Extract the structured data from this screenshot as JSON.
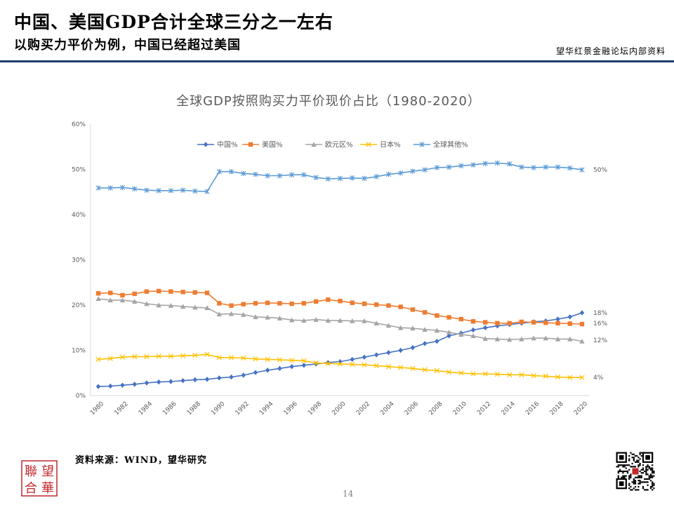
{
  "header": {
    "title": "中国、美国GDP合计全球三分之一左右",
    "subtitle": "以购买力平价为例，中国已经超过美国",
    "org_note": "望华红景金融论坛内部资料"
  },
  "footer": {
    "source": "资料来源：WIND，望华研究",
    "page_number": "14",
    "logo_text": [
      "望",
      "聯",
      "華",
      "合"
    ]
  },
  "colors": {
    "header_rule": "#1f3e6e",
    "logo_red": "#c0282d"
  },
  "chart_data": {
    "type": "line",
    "title": "全球GDP按照购买力平价现价占比（1980-2020）",
    "xlabel": "",
    "ylabel": "",
    "ylim": [
      0,
      60
    ],
    "ytick_labels": [
      "0%",
      "10%",
      "20%",
      "30%",
      "40%",
      "50%",
      "60%"
    ],
    "grid": false,
    "legend_position": "top",
    "x": [
      1980,
      1981,
      1982,
      1983,
      1984,
      1985,
      1986,
      1987,
      1988,
      1989,
      1990,
      1991,
      1992,
      1993,
      1994,
      1995,
      1996,
      1997,
      1998,
      1999,
      2000,
      2001,
      2002,
      2003,
      2004,
      2005,
      2006,
      2007,
      2008,
      2009,
      2010,
      2011,
      2012,
      2013,
      2014,
      2015,
      2016,
      2017,
      2018,
      2019,
      2020
    ],
    "xtick_labels": [
      "1980",
      "1982",
      "1984",
      "1986",
      "1988",
      "1990",
      "1992",
      "1994",
      "1996",
      "1998",
      "2000",
      "2002",
      "2004",
      "2006",
      "2008",
      "2010",
      "2012",
      "2014",
      "2016",
      "2018",
      "2020"
    ],
    "series": [
      {
        "name": "中国%",
        "color": "#4472c4",
        "marker": "diamond",
        "end_label": "18%",
        "values": [
          2.0,
          2.1,
          2.3,
          2.5,
          2.8,
          3.0,
          3.1,
          3.3,
          3.5,
          3.6,
          3.9,
          4.1,
          4.5,
          5.1,
          5.6,
          6.0,
          6.4,
          6.7,
          7.0,
          7.3,
          7.5,
          8.0,
          8.5,
          9.0,
          9.5,
          10.0,
          10.6,
          11.5,
          12.0,
          13.2,
          13.8,
          14.5,
          15.0,
          15.4,
          15.7,
          16.0,
          16.3,
          16.5,
          16.9,
          17.4,
          18.3
        ]
      },
      {
        "name": "美国%",
        "color": "#ed7d31",
        "marker": "square",
        "end_label": "16%",
        "values": [
          22.6,
          22.7,
          22.2,
          22.5,
          23.0,
          23.1,
          23.0,
          22.9,
          22.8,
          22.7,
          20.4,
          19.9,
          20.2,
          20.4,
          20.5,
          20.4,
          20.3,
          20.4,
          20.8,
          21.2,
          20.9,
          20.5,
          20.3,
          20.1,
          19.9,
          19.6,
          19.0,
          18.4,
          17.7,
          17.3,
          16.9,
          16.4,
          16.2,
          16.0,
          16.0,
          16.3,
          16.2,
          16.1,
          16.0,
          15.9,
          15.8
        ]
      },
      {
        "name": "欧元区%",
        "color": "#a5a5a5",
        "marker": "triangle",
        "end_label": "12%",
        "values": [
          21.4,
          21.1,
          21.1,
          20.8,
          20.3,
          20.0,
          19.9,
          19.7,
          19.5,
          19.4,
          18.0,
          18.1,
          17.9,
          17.4,
          17.3,
          17.1,
          16.7,
          16.6,
          16.8,
          16.6,
          16.6,
          16.5,
          16.5,
          16.0,
          15.5,
          15.0,
          14.9,
          14.6,
          14.4,
          14.0,
          13.5,
          13.2,
          12.6,
          12.5,
          12.4,
          12.5,
          12.7,
          12.7,
          12.5,
          12.5,
          12.0
        ]
      },
      {
        "name": "日本%",
        "color": "#ffc000",
        "marker": "x",
        "end_label": "4%",
        "values": [
          8.0,
          8.2,
          8.5,
          8.6,
          8.6,
          8.7,
          8.7,
          8.8,
          8.9,
          9.1,
          8.4,
          8.4,
          8.3,
          8.1,
          8.0,
          7.9,
          7.8,
          7.7,
          7.2,
          7.1,
          7.0,
          6.9,
          6.8,
          6.6,
          6.4,
          6.2,
          6.0,
          5.7,
          5.5,
          5.2,
          5.0,
          4.8,
          4.8,
          4.7,
          4.6,
          4.6,
          4.4,
          4.3,
          4.1,
          4.0,
          4.0
        ]
      },
      {
        "name": "全球其他%",
        "color": "#5b9bd5",
        "marker": "asterisk",
        "end_label": "50%",
        "values": [
          45.9,
          45.9,
          46.0,
          45.7,
          45.4,
          45.3,
          45.3,
          45.4,
          45.2,
          45.1,
          49.5,
          49.5,
          49.1,
          48.9,
          48.6,
          48.6,
          48.8,
          48.8,
          48.2,
          47.9,
          48.0,
          48.1,
          48.0,
          48.4,
          48.9,
          49.2,
          49.6,
          49.9,
          50.4,
          50.5,
          50.8,
          51.0,
          51.3,
          51.4,
          51.2,
          50.5,
          50.4,
          50.5,
          50.5,
          50.3,
          49.9
        ]
      }
    ]
  }
}
